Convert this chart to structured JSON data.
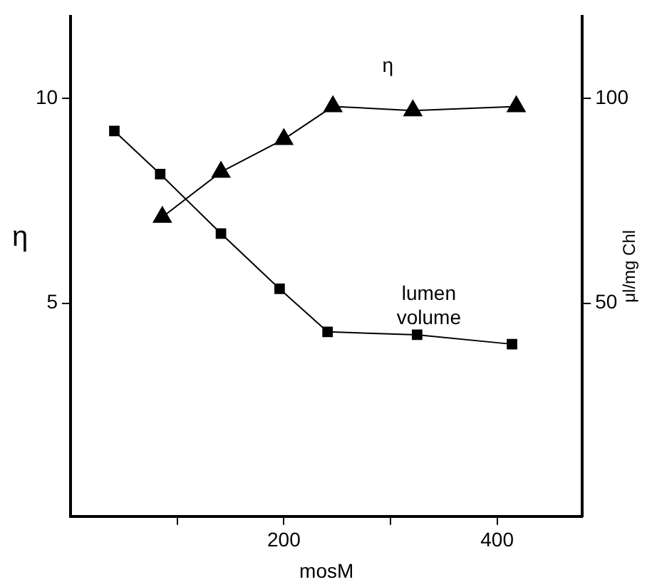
{
  "chart_data": {
    "type": "line",
    "xlabel": "mosM",
    "ylabel": "η",
    "y2label": "μl/mg Chl",
    "xlim": [
      0,
      480
    ],
    "xticks": [
      {
        "value": 100,
        "label": null
      },
      200,
      {
        "value": 300,
        "label": null
      },
      400
    ],
    "ylim": [
      -0.2,
      12
    ],
    "yticks": [
      5,
      10
    ],
    "y2lim": [
      -2,
      120
    ],
    "y2ticks": [
      50,
      100
    ],
    "grid": false,
    "legend": false,
    "line_style": "solid",
    "series": [
      {
        "color": "#000000",
        "marker": "triangle",
        "x": [
          86,
          141,
          200,
          246,
          321,
          418
        ],
        "values": [
          7.1,
          8.2,
          9.0,
          9.8,
          9.7,
          9.8
        ]
      },
      {
        "color": "#000000",
        "marker": "square",
        "axis": "y2",
        "x": [
          41,
          84,
          141,
          196,
          241,
          325,
          414
        ],
        "values": [
          92,
          81.5,
          67,
          53.5,
          43,
          42.3,
          40
        ]
      }
    ],
    "annotations": [
      "η",
      "lumen volume"
    ]
  }
}
